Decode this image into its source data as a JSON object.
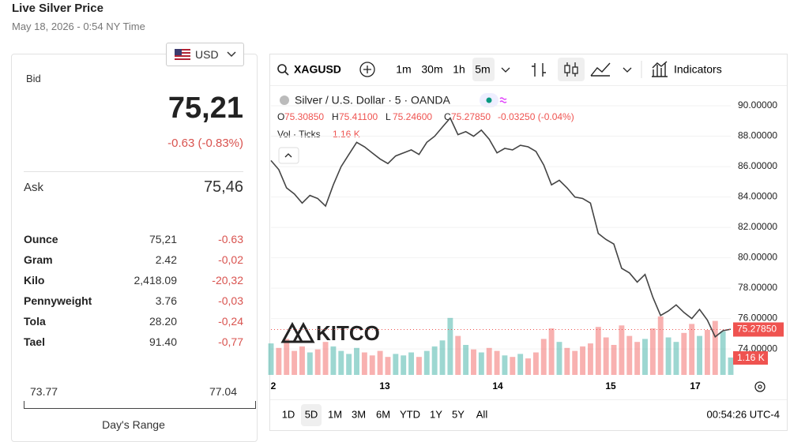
{
  "header": {
    "title": "Live Silver Price",
    "subtitle": "May 18, 2026 - 0:54 NY Time"
  },
  "currency": "USD",
  "quote": {
    "bid_label": "Bid",
    "bid": "75,21",
    "change": "-0.63 (-0.83%)",
    "ask_label": "Ask",
    "ask": "75,46"
  },
  "table": {
    "rows": [
      [
        "Ounce",
        "75,21",
        "-0.63"
      ],
      [
        "Gram",
        "2.42",
        "-0,02"
      ],
      [
        "Kilo",
        "2,418.09",
        "-20,32"
      ],
      [
        "Pennyweight",
        "3.76",
        "-0,03"
      ],
      [
        "Tola",
        "28.20",
        "-0,24"
      ],
      [
        "Tael",
        "91.40",
        "-0,77"
      ]
    ]
  },
  "range": {
    "low": "73.77",
    "high": "77.04",
    "label": "Day's Range"
  },
  "toolbar": {
    "symbol": "XAGUSD",
    "intervals": [
      "1m",
      "30m",
      "1h",
      "5m"
    ],
    "indicators": "Indicators"
  },
  "legend": {
    "title": "Silver / U.S. Dollar · 5 · OANDA",
    "ohlc": [
      {
        "label": "O",
        "value": "75.30850"
      },
      {
        "label": "H",
        "value": "75.41100"
      },
      {
        "label": "L",
        "value": "75.24600"
      },
      {
        "label": "C",
        "value": "75.27850"
      }
    ],
    "change": "-0.03250 (-0.04%)",
    "volume_label": "Vol · Ticks",
    "volume": "1.16 K"
  },
  "watermark": "KITCO",
  "chart": {
    "type": "line",
    "x_labels": [
      "2",
      "13",
      "14",
      "15",
      "17"
    ],
    "values": [
      86.4,
      85.8,
      84.6,
      84.2,
      83.6,
      84.1,
      83.9,
      83.4,
      84.8,
      86.0,
      86.8,
      87.6,
      87.3,
      86.9,
      86.5,
      86.2,
      86.7,
      86.9,
      87.1,
      86.8,
      87.6,
      88.0,
      88.6,
      89.2,
      88.1,
      88.3,
      88.0,
      88.4,
      87.8,
      86.9,
      87.2,
      87.1,
      87.4,
      87.3,
      87.0,
      86.1,
      84.8,
      85.1,
      84.6,
      84.0,
      83.9,
      83.6,
      81.6,
      81.2,
      80.9,
      79.3,
      79.0,
      78.4,
      78.9,
      77.4,
      76.2,
      76.5,
      76.9,
      76.4,
      76.0,
      76.6,
      75.9,
      74.8,
      75.2,
      75.3
    ],
    "volume": [
      2.1,
      1.8,
      2.4,
      1.6,
      1.9,
      1.5,
      1.7,
      2.2,
      1.9,
      1.6,
      1.4,
      1.8,
      1.5,
      1.3,
      1.6,
      1.2,
      1.4,
      1.3,
      1.5,
      1.2,
      1.6,
      1.9,
      2.3,
      3.8,
      2.6,
      2.0,
      1.7,
      1.5,
      1.8,
      1.6,
      1.3,
      1.2,
      1.4,
      1.1,
      1.5,
      2.4,
      3.1,
      2.2,
      1.8,
      1.6,
      1.9,
      2.1,
      3.2,
      2.5,
      2.0,
      3.3,
      2.6,
      2.2,
      2.4,
      3.1,
      3.9,
      2.5,
      2.2,
      2.8,
      3.4,
      2.6,
      3.0,
      3.6,
      2.9,
      1.16
    ],
    "line_color": "#444444",
    "up_color": "#26a69a",
    "down_color": "#ef5350",
    "ylim": [
      72.29,
      90.99
    ],
    "yticks": [
      {
        "value": 90,
        "label": "90.00000"
      },
      {
        "value": 88,
        "label": "88.00000"
      },
      {
        "value": 86,
        "label": "86.00000"
      },
      {
        "value": 84,
        "label": "84.00000"
      },
      {
        "value": 82,
        "label": "82.00000"
      },
      {
        "value": 80,
        "label": "80.00000"
      },
      {
        "value": 78,
        "label": "78.00000"
      },
      {
        "value": 76,
        "label": "76.00000"
      },
      {
        "value": 74,
        "label": "74.00000"
      }
    ],
    "last_price": 75.2785,
    "grid": true
  },
  "ranges": [
    "1D",
    "5D",
    "1M",
    "3M",
    "6M",
    "YTD",
    "1Y",
    "5Y",
    "All"
  ],
  "clock": "00:54:26 UTC-4"
}
